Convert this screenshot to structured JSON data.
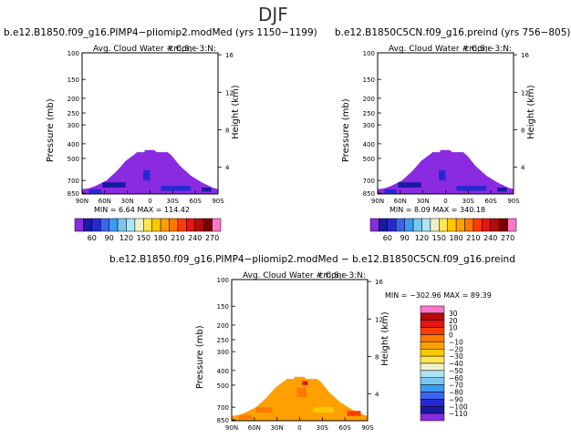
{
  "season": "DJF",
  "panels": [
    {
      "id": "case1",
      "title": "b.e12.B1850.f09_g16.PIMP4−pliomip2.modMed (yrs 1150−1199)",
      "subtitle": "Avg. Cloud Water # Conc",
      "units": "cm;S;−3:N:",
      "y_left_label": "Pressure (mb)",
      "y_right_label": "Height (km)",
      "stats": "MIN =    6.64  MAX = 114.42"
    },
    {
      "id": "case2",
      "title": "b.e12.B1850C5CN.f09_g16.preind (yrs 756−805)",
      "subtitle": "Avg. Cloud Water # Conc",
      "units": "cm;S;−3:N:",
      "y_left_label": "Pressure (mb)",
      "y_right_label": "Height (km)",
      "stats": "MIN =    8.09  MAX = 340.18"
    },
    {
      "id": "diff",
      "title": "b.e12.B1850.f09_g16.PIMP4−pliomip2.modMed − b.e12.B1850C5CN.f09_g16.preind",
      "subtitle": "Avg. Cloud Water # Conc",
      "units": "cm;S;−3:N:",
      "y_left_label": "Pressure (mb)",
      "y_right_label": "Height (km)",
      "stats": "MIN = −302.96  MAX =   89.39"
    }
  ],
  "axes": {
    "lat_ticks": [
      "90N",
      "60N",
      "30N",
      "0",
      "30S",
      "60S",
      "90S"
    ],
    "pressure_ticks": [
      "100",
      "150",
      "200",
      "250",
      "300",
      "400",
      "500",
      "700",
      "850"
    ],
    "height_ticks": [
      "16",
      "12",
      "8",
      "4"
    ]
  },
  "top_colorbar": {
    "colors": [
      "#8a2be2",
      "#1a1aa0",
      "#2828d2",
      "#3c64f0",
      "#3c9bf0",
      "#78c8f0",
      "#aae6f5",
      "#f0f0c8",
      "#ffe650",
      "#ffc800",
      "#ffa000",
      "#ff7800",
      "#ff3c00",
      "#e61414",
      "#b40a0a",
      "#780000",
      "#ff78c8"
    ],
    "labels": [
      "60",
      "90",
      "120",
      "150",
      "180",
      "210",
      "240",
      "270"
    ]
  },
  "diff_colorbar": {
    "colors": [
      "#ff78c8",
      "#b40a0a",
      "#e61414",
      "#ff3c00",
      "#ff7800",
      "#ffa000",
      "#ffc800",
      "#ffe650",
      "#f0f0c8",
      "#aae6f5",
      "#78c8f0",
      "#3c9bf0",
      "#3c64f0",
      "#2828d2",
      "#1a1aa0",
      "#8a2be2"
    ],
    "labels": [
      "30",
      "20",
      "10",
      "0",
      "−10",
      "−20",
      "−30",
      "−40",
      "−50",
      "−60",
      "−70",
      "−80",
      "−90",
      "−100",
      "−110"
    ]
  }
}
